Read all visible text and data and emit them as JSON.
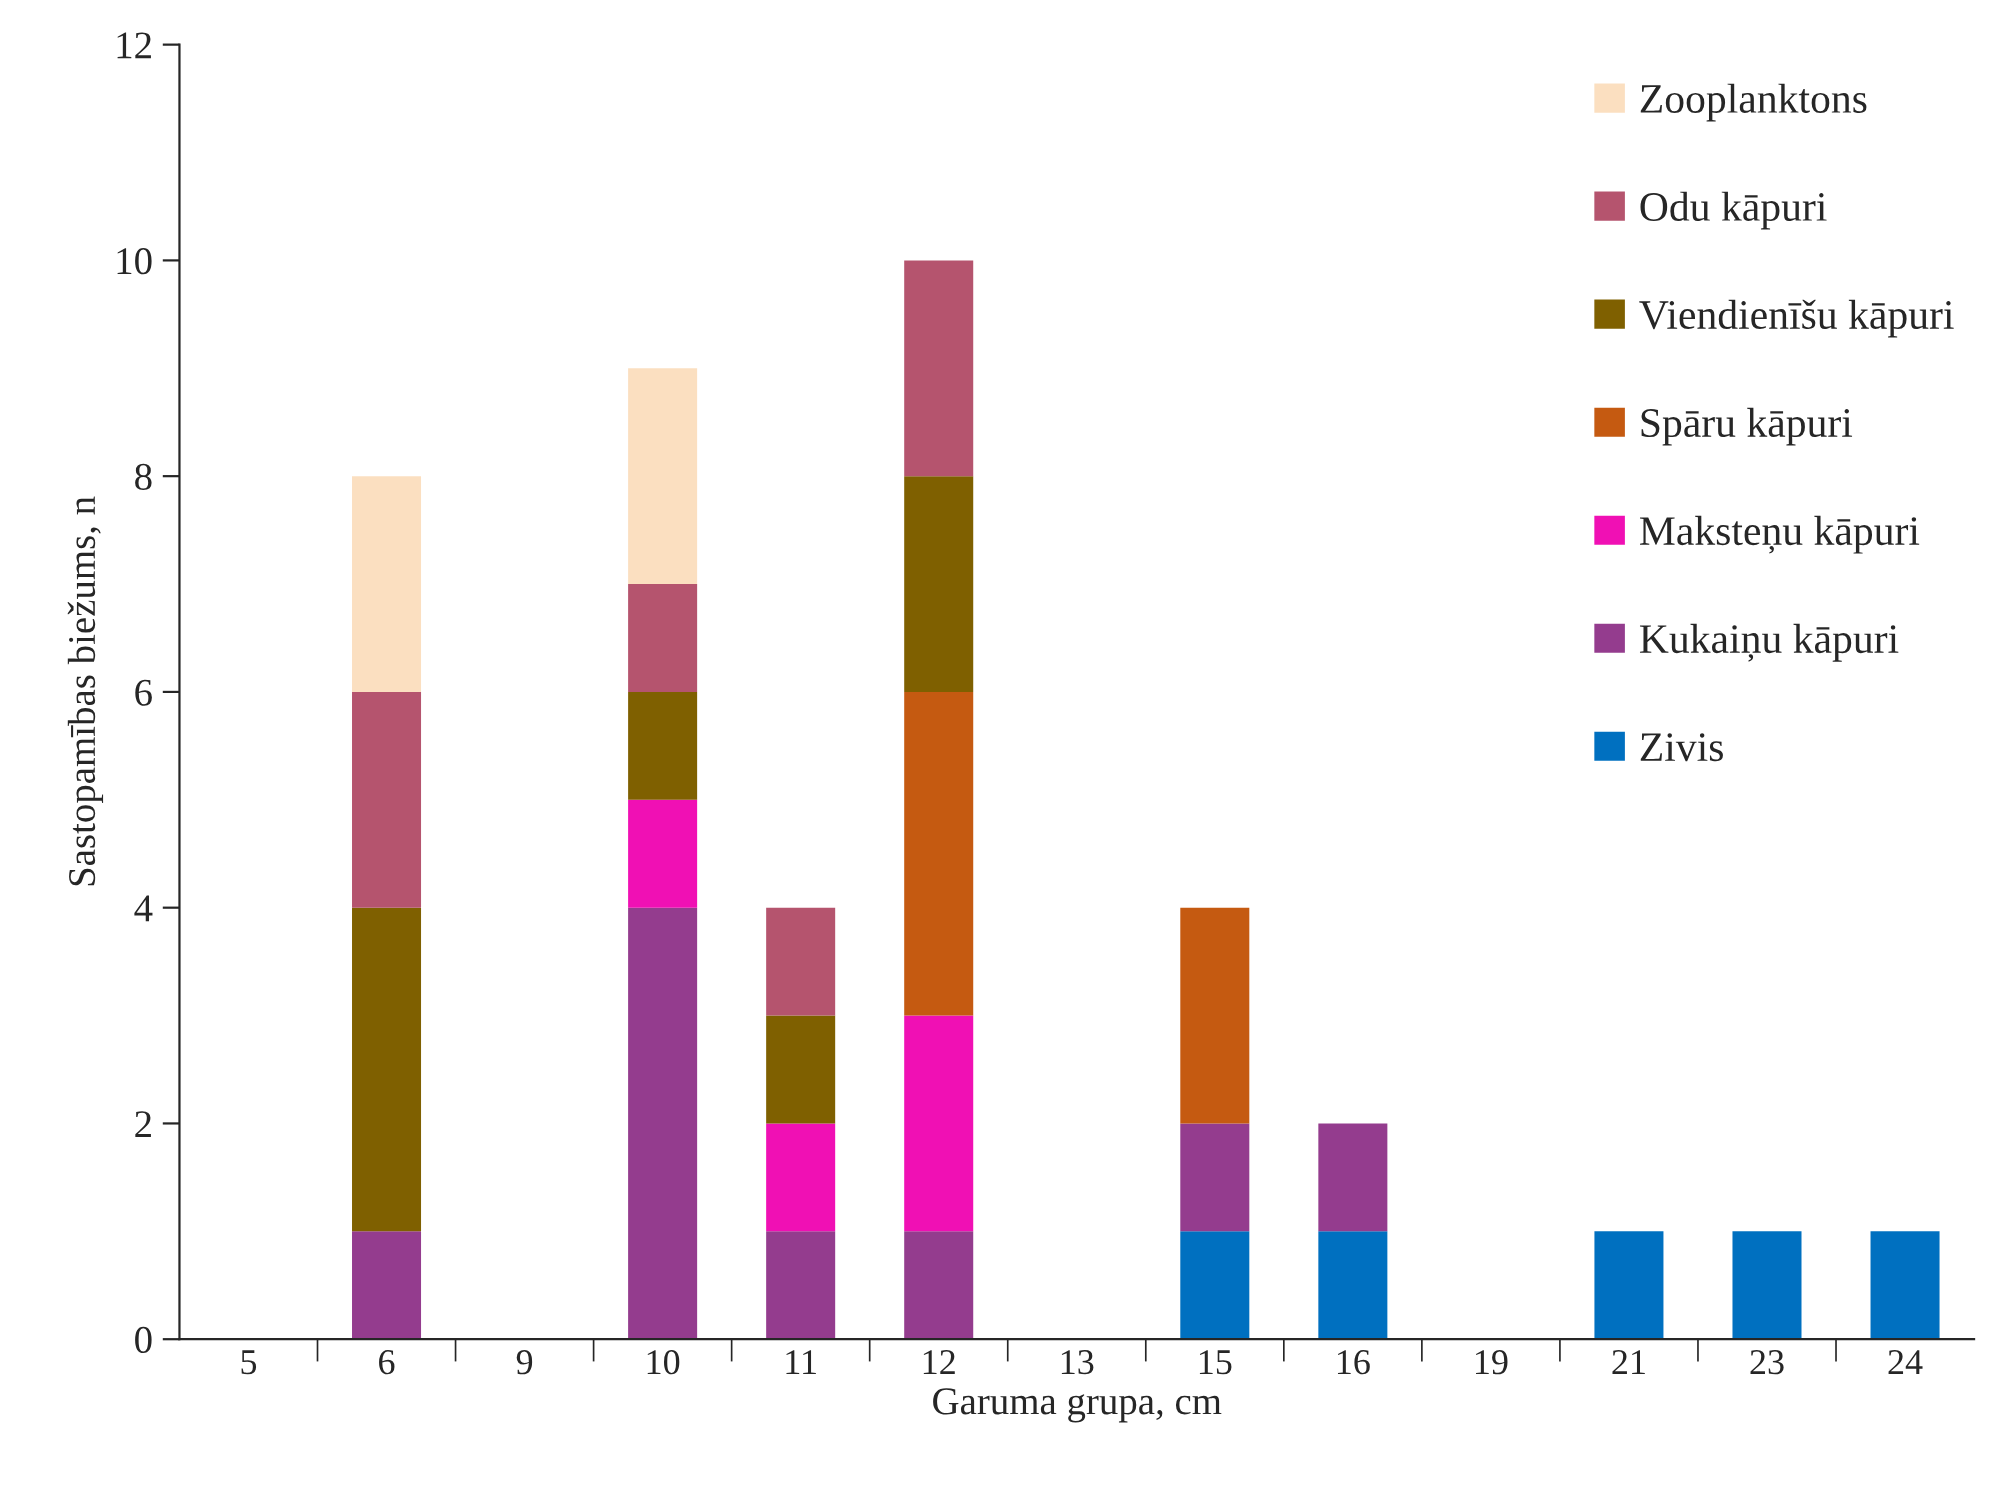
{
  "chart_data": {
    "type": "bar",
    "stacked": true,
    "xlabel": "Garuma grupa, cm",
    "ylabel": "Sastopamības biežums, n",
    "categories": [
      "5",
      "6",
      "9",
      "10",
      "11",
      "12",
      "13",
      "15",
      "16",
      "19",
      "21",
      "23",
      "24"
    ],
    "series": [
      {
        "name": "Zivis",
        "color": "#0070c0",
        "values": [
          null,
          null,
          null,
          null,
          null,
          null,
          null,
          1,
          1,
          null,
          1,
          1,
          1
        ]
      },
      {
        "name": "Kukaiņu kāpuri",
        "color": "#943c8e",
        "values": [
          null,
          1,
          null,
          4,
          1,
          1,
          null,
          1,
          1,
          null,
          null,
          null,
          null
        ]
      },
      {
        "name": "Maksteņu kāpuri",
        "color": "#f010b4",
        "values": [
          null,
          null,
          null,
          1,
          1,
          2,
          null,
          null,
          null,
          null,
          null,
          null,
          null
        ]
      },
      {
        "name": "Spāru kāpuri",
        "color": "#c55a11",
        "values": [
          null,
          null,
          null,
          null,
          null,
          3,
          null,
          2,
          null,
          null,
          null,
          null,
          null
        ]
      },
      {
        "name": "Viendienīšu kāpuri",
        "color": "#7f6000",
        "values": [
          null,
          3,
          null,
          1,
          1,
          2,
          null,
          null,
          null,
          null,
          null,
          null,
          null
        ]
      },
      {
        "name": "Odu kāpuri",
        "color": "#b5546e",
        "values": [
          null,
          2,
          null,
          1,
          1,
          2,
          null,
          null,
          null,
          null,
          null,
          null,
          null
        ]
      },
      {
        "name": "Zooplanktons",
        "color": "#fbdfc0",
        "values": [
          null,
          2,
          null,
          2,
          null,
          null,
          null,
          null,
          null,
          null,
          null,
          null,
          null
        ]
      }
    ],
    "ylim": [
      0,
      12
    ],
    "yticks": [
      0,
      2,
      4,
      6,
      8,
      10,
      12
    ],
    "grid": false,
    "legend": "right"
  }
}
